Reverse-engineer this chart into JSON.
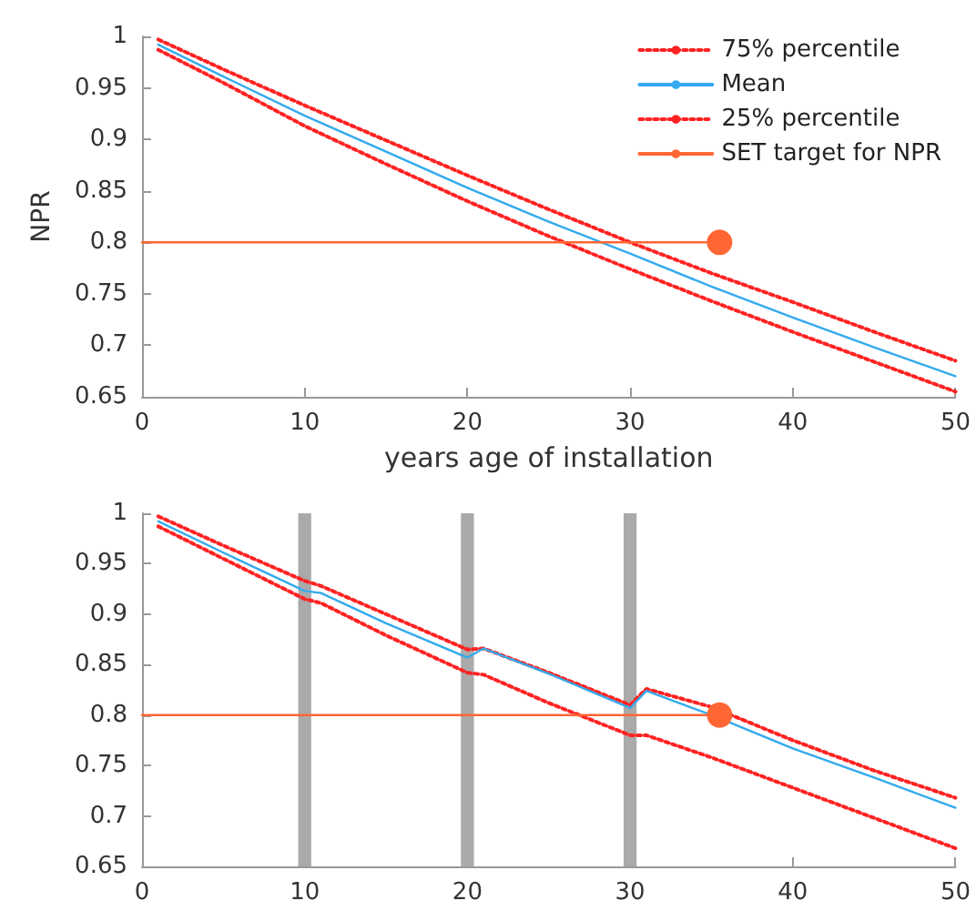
{
  "chart_data": [
    {
      "type": "line",
      "xlabel": "years age of installation",
      "ylabel": "NPR",
      "xlim": [
        0,
        50
      ],
      "ylim": [
        0.65,
        1
      ],
      "xticks": [
        0,
        10,
        20,
        30,
        40,
        50
      ],
      "yticks": [
        0.65,
        0.7,
        0.75,
        0.8,
        0.85,
        0.9,
        0.95,
        1
      ],
      "grid": false,
      "legend": "top right",
      "series": [
        {
          "name": "75% percentile",
          "color": "#ff2222",
          "line_style": "dotted",
          "marker": "none",
          "x": [
            1,
            5,
            10,
            15,
            20,
            25,
            30,
            35,
            40,
            45,
            50
          ],
          "values": [
            0.997,
            0.968,
            0.933,
            0.899,
            0.865,
            0.832,
            0.8,
            0.77,
            0.742,
            0.713,
            0.685
          ]
        },
        {
          "name": "Mean",
          "color": "#33aaee",
          "line_style": "solid",
          "marker": "none",
          "x": [
            1,
            5,
            10,
            15,
            20,
            25,
            30,
            35,
            40,
            45,
            50
          ],
          "values": [
            0.992,
            0.961,
            0.923,
            0.888,
            0.853,
            0.82,
            0.789,
            0.757,
            0.727,
            0.698,
            0.67
          ]
        },
        {
          "name": "25% percentile",
          "color": "#ff2222",
          "line_style": "dotted",
          "marker": "none",
          "x": [
            1,
            5,
            10,
            15,
            20,
            25,
            30,
            35,
            40,
            45,
            50
          ],
          "values": [
            0.987,
            0.955,
            0.913,
            0.876,
            0.84,
            0.806,
            0.774,
            0.743,
            0.713,
            0.684,
            0.655
          ]
        },
        {
          "name": "SET target for NPR",
          "color": "#ff6633",
          "line_style": "solid",
          "marker": "circle",
          "x": [
            0,
            35.5
          ],
          "values": [
            0.8,
            0.8
          ]
        }
      ]
    },
    {
      "type": "line",
      "xlim": [
        0,
        50
      ],
      "ylim": [
        0.65,
        1
      ],
      "xticks": [
        0,
        10,
        20,
        30,
        40,
        50
      ],
      "yticks": [
        0.65,
        0.7,
        0.75,
        0.8,
        0.85,
        0.9,
        0.95,
        1
      ],
      "grid": false,
      "legend": false,
      "bands": [
        {
          "axis": "x",
          "from": 9.6,
          "to": 10.4,
          "color": "#aaaaaa"
        },
        {
          "axis": "x",
          "from": 19.6,
          "to": 20.4,
          "color": "#aaaaaa"
        },
        {
          "axis": "x",
          "from": 29.6,
          "to": 30.4,
          "color": "#aaaaaa"
        }
      ],
      "series": [
        {
          "color": "#ff2222",
          "line_style": "dotted",
          "marker": "none",
          "x": [
            1,
            5,
            10,
            11,
            15,
            20,
            21,
            25,
            30,
            31,
            35,
            40,
            45,
            50
          ],
          "values": [
            0.997,
            0.968,
            0.933,
            0.928,
            0.9,
            0.865,
            0.866,
            0.842,
            0.81,
            0.826,
            0.808,
            0.775,
            0.745,
            0.718
          ]
        },
        {
          "color": "#33aaee",
          "line_style": "solid",
          "marker": "none",
          "x": [
            1,
            5,
            10,
            11,
            15,
            20,
            21,
            25,
            30,
            31,
            35,
            40,
            45,
            50
          ],
          "values": [
            0.992,
            0.961,
            0.923,
            0.921,
            0.891,
            0.857,
            0.866,
            0.841,
            0.807,
            0.824,
            0.8,
            0.767,
            0.738,
            0.708
          ]
        },
        {
          "color": "#ff2222",
          "line_style": "dotted",
          "marker": "none",
          "x": [
            1,
            5,
            10,
            11,
            15,
            20,
            21,
            25,
            30,
            31,
            35,
            40,
            45,
            50
          ],
          "values": [
            0.987,
            0.955,
            0.915,
            0.911,
            0.879,
            0.842,
            0.84,
            0.812,
            0.78,
            0.78,
            0.758,
            0.728,
            0.698,
            0.668
          ]
        },
        {
          "color": "#ff6633",
          "line_style": "solid",
          "marker": "circle",
          "x": [
            0,
            35.5
          ],
          "values": [
            0.8,
            0.8
          ]
        }
      ]
    }
  ]
}
